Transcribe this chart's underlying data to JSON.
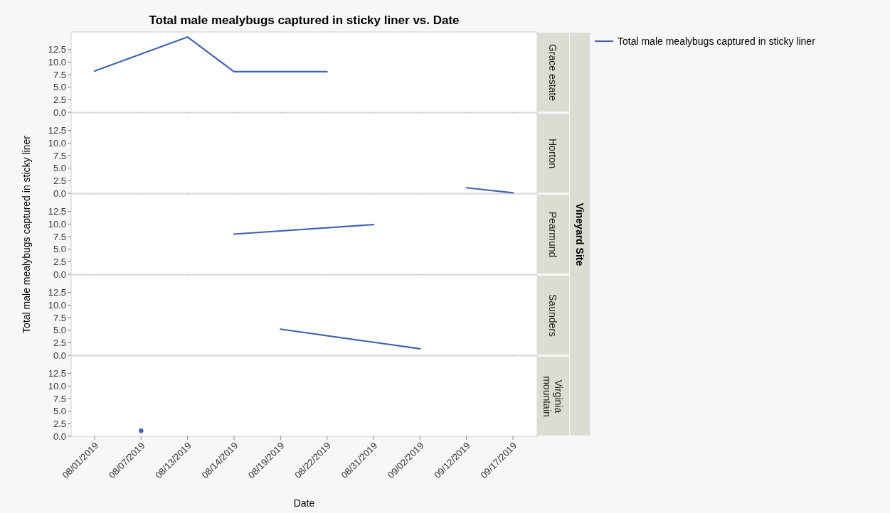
{
  "chart_data": [
    {
      "type": "line",
      "title": "Total male mealybugs captured in sticky liner vs. Date",
      "annotations": [
        "Grace estate"
      ],
      "categories": [
        null,
        null,
        null,
        null,
        null,
        null,
        null,
        null,
        null,
        null
      ],
      "series": [
        {
          "name": "Total male mealybugs captured in sticky liner",
          "color": "#4062b0",
          "values": [
            8.2,
            null,
            15,
            8.1,
            8.1,
            8.1,
            null,
            null,
            null,
            null
          ]
        }
      ],
      "ylim": [
        0,
        16
      ],
      "yticks": [
        {
          "value": 0,
          "label": "0.0"
        },
        2.5,
        {
          "value": 5,
          "label": "5.0"
        },
        7.5,
        {
          "value": 10,
          "label": "10.0"
        },
        12.5
      ],
      "tick_labels": "y",
      "legend": "right"
    },
    {
      "type": "line",
      "annotations": [
        "Horton"
      ],
      "categories": [
        null,
        null,
        null,
        null,
        null,
        null,
        null,
        null,
        null,
        null
      ],
      "series": [
        {
          "color": "#4062b0",
          "values": [
            null,
            null,
            null,
            null,
            null,
            null,
            null,
            null,
            1.1,
            0.1
          ]
        }
      ],
      "ylim": [
        0,
        16
      ],
      "yticks": [
        {
          "value": 0,
          "label": "0.0"
        },
        2.5,
        {
          "value": 5,
          "label": "5.0"
        },
        7.5,
        {
          "value": 10,
          "label": "10.0"
        },
        12.5
      ],
      "tick_labels": "y"
    },
    {
      "type": "line",
      "ylabel": "Total male mealybugs captured in sticky liner",
      "annotations": [
        "Pearmund",
        "Vineyard Site"
      ],
      "categories": [
        null,
        null,
        null,
        null,
        null,
        null,
        null,
        null,
        null,
        null
      ],
      "series": [
        {
          "color": "#4062b0",
          "values": [
            null,
            null,
            null,
            8.0,
            null,
            null,
            9.9,
            null,
            null,
            null
          ]
        }
      ],
      "ylim": [
        0,
        16
      ],
      "yticks": [
        {
          "value": 0,
          "label": "0.0"
        },
        2.5,
        {
          "value": 5,
          "label": "5.0"
        },
        7.5,
        {
          "value": 10,
          "label": "10.0"
        },
        12.5
      ],
      "tick_labels": "y"
    },
    {
      "type": "line",
      "annotations": [
        "Saunders"
      ],
      "categories": [
        null,
        null,
        null,
        null,
        null,
        null,
        null,
        null,
        null,
        null
      ],
      "series": [
        {
          "color": "#4062b0",
          "values": [
            null,
            null,
            null,
            null,
            5.2,
            null,
            null,
            1.3,
            null,
            null
          ]
        }
      ],
      "ylim": [
        0,
        16
      ],
      "yticks": [
        {
          "value": 0,
          "label": "0.0"
        },
        2.5,
        {
          "value": 5,
          "label": "5.0"
        },
        7.5,
        {
          "value": 10,
          "label": "10.0"
        },
        12.5
      ],
      "tick_labels": "y"
    },
    {
      "type": "line",
      "annotations": [
        "Virginia mountain"
      ],
      "xlabel": "Date",
      "marker": "circle",
      "categories": [
        "08/01/2019",
        "08/07/2019",
        "08/13/2019",
        "08/14/2019",
        "08/19/2019",
        "08/22/2019",
        "08/31/2019",
        "09/02/2019",
        "09/12/2019",
        "09/17/2019"
      ],
      "series": [
        {
          "color": "#4062b0",
          "values": [
            null,
            1.1,
            null,
            null,
            null,
            null,
            null,
            null,
            null,
            null
          ]
        }
      ],
      "ylim": [
        0,
        16
      ],
      "yticks": [
        {
          "value": 0,
          "label": "0.0"
        },
        2.5,
        {
          "value": 5,
          "label": "5.0"
        },
        7.5,
        {
          "value": 10,
          "label": "10.0"
        },
        12.5
      ]
    }
  ]
}
